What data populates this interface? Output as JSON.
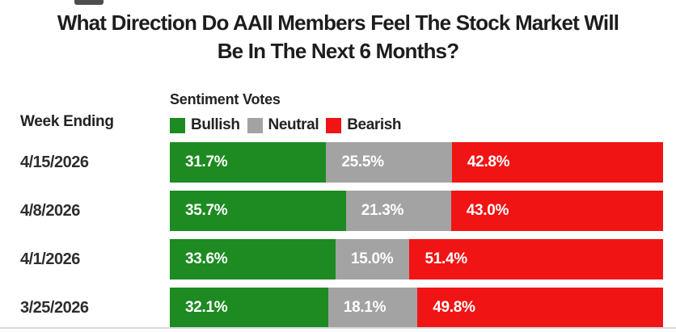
{
  "title": "What Direction Do AAII Members Feel The Stock Market Will Be In The Next 6 Months?",
  "week_ending_label": "Week Ending",
  "legend": {
    "title": "Sentiment Votes",
    "items": [
      {
        "label": "Bullish",
        "color": "#1d8a22"
      },
      {
        "label": "Neutral",
        "color": "#a3a3a3"
      },
      {
        "label": "Bearish",
        "color": "#f01414"
      }
    ]
  },
  "colors": {
    "background": "#ffffff",
    "title_text": "#1d1d1d",
    "bar_value_text": "#ffffff",
    "divider": "#d7dadd"
  },
  "chart_data": {
    "type": "bar",
    "stacked": true,
    "orientation": "horizontal",
    "title": "What Direction Do AAII Members Feel The Stock Market Will Be In The Next 6 Months?",
    "legend_title": "Sentiment Votes",
    "legend_position": "top",
    "row_axis_label": "Week Ending",
    "categories": [
      "4/15/2026",
      "4/8/2026",
      "4/1/2026",
      "3/25/2026"
    ],
    "series": [
      {
        "name": "Bullish",
        "color": "#1d8a22",
        "values": [
          31.7,
          35.7,
          33.6,
          32.1
        ]
      },
      {
        "name": "Neutral",
        "color": "#a3a3a3",
        "values": [
          25.5,
          21.3,
          15.0,
          18.1
        ]
      },
      {
        "name": "Bearish",
        "color": "#f01414",
        "values": [
          42.8,
          43.0,
          51.4,
          49.8
        ]
      }
    ],
    "xlim": [
      0,
      100
    ],
    "value_suffix": "%",
    "grid": false,
    "rows": [
      {
        "week": "4/15/2026",
        "bullish_pct": 31.7,
        "bullish_label": "31.7%",
        "neutral_pct": 25.5,
        "neutral_label": "25.5%",
        "bearish_pct": 42.8,
        "bearish_label": "42.8%"
      },
      {
        "week": "4/8/2026",
        "bullish_pct": 35.7,
        "bullish_label": "35.7%",
        "neutral_pct": 21.3,
        "neutral_label": "21.3%",
        "bearish_pct": 43.0,
        "bearish_label": "43.0%"
      },
      {
        "week": "4/1/2026",
        "bullish_pct": 33.6,
        "bullish_label": "33.6%",
        "neutral_pct": 15.0,
        "neutral_label": "15.0%",
        "bearish_pct": 51.4,
        "bearish_label": "51.4%"
      },
      {
        "week": "3/25/2026",
        "bullish_pct": 32.1,
        "bullish_label": "32.1%",
        "neutral_pct": 18.1,
        "neutral_label": "18.1%",
        "bearish_pct": 49.8,
        "bearish_label": "49.8%"
      }
    ]
  }
}
